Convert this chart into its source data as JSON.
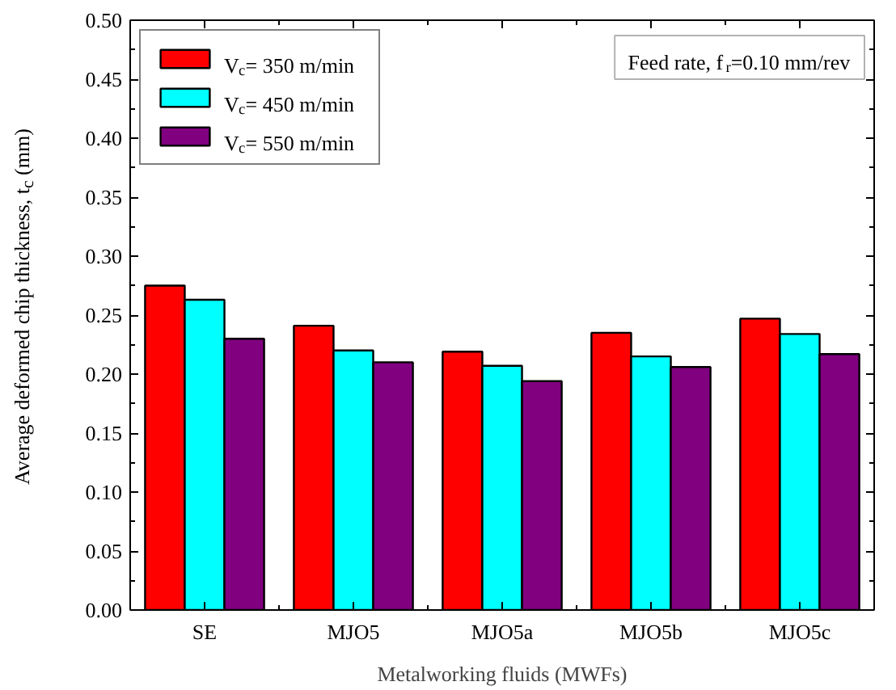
{
  "chart_data": {
    "type": "bar",
    "xlabel": "Metalworking fluids (MWFs)",
    "ylabel": "Average deformed chip thickness, t$_{c}$ (mm)",
    "categories": [
      "SE",
      "MJO5",
      "MJO5a",
      "MJO5b",
      "MJO5c"
    ],
    "series": [
      {
        "name": "V$_{c}$= 350 m/min",
        "color": "#ff0000",
        "values": [
          0.275,
          0.241,
          0.219,
          0.235,
          0.247
        ]
      },
      {
        "name": "V$_{c}$= 450 m/min",
        "color": "#00ffff",
        "values": [
          0.263,
          0.22,
          0.207,
          0.215,
          0.234
        ]
      },
      {
        "name": "V$_{c}$= 550 m/min",
        "color": "#800080",
        "values": [
          0.23,
          0.21,
          0.194,
          0.206,
          0.217
        ]
      }
    ],
    "ylim": [
      0,
      0.5
    ],
    "yticks": [
      {
        "value": 0,
        "label": "0.00"
      },
      {
        "value": 0.05,
        "label": "0.05"
      },
      {
        "value": 0.1,
        "label": "0.10"
      },
      {
        "value": 0.15,
        "label": "0.15"
      },
      {
        "value": 0.2,
        "label": "0.20"
      },
      {
        "value": 0.25,
        "label": "0.25"
      },
      {
        "value": 0.3,
        "label": "0.30"
      },
      {
        "value": 0.35,
        "label": "0.35"
      },
      {
        "value": 0.4,
        "label": "0.40"
      },
      {
        "value": 0.45,
        "label": "0.45"
      },
      {
        "value": 0.5,
        "label": "0.50"
      }
    ],
    "annotations": [
      "Feed rate, f$_{r}$=0.10 mm/rev"
    ],
    "legend": "top left",
    "grid": false
  }
}
